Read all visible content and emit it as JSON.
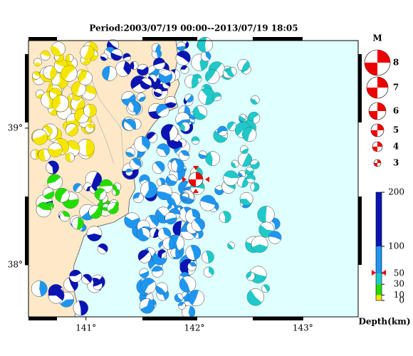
{
  "title": "Period:2003/07/19 00:00--2013/07/19 18:05",
  "map": {
    "xlim": [
      140.47,
      143.51
    ],
    "ylim": [
      37.62,
      39.64
    ],
    "xticks": [
      {
        "value": 141,
        "label": "141°"
      },
      {
        "value": 142,
        "label": "142°"
      },
      {
        "value": 143,
        "label": "143°"
      }
    ],
    "yticks": [
      {
        "value": 39,
        "label": "39°"
      },
      {
        "value": 38,
        "label": "38°"
      }
    ]
  },
  "magnitude_legend": {
    "title": "M",
    "labels": [
      "8",
      "7",
      "6",
      "5",
      "4",
      "3"
    ]
  },
  "depth_scale": {
    "title": "Depth(km)",
    "ticks": [
      0,
      10,
      30,
      50,
      100,
      200
    ],
    "interval_colors": [
      "#f5e600",
      "#22dd00",
      "#20c8c8",
      "#1e96f0",
      "#0a14b4"
    ]
  }
}
